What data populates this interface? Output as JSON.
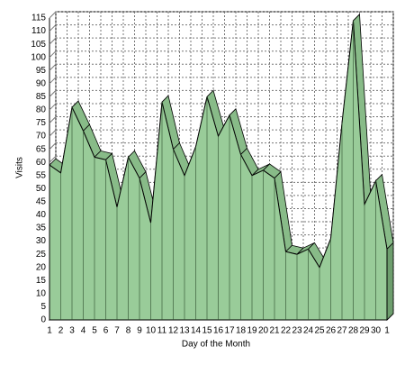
{
  "chart_data": {
    "type": "area3d",
    "x_label": "Day of the Month",
    "y_label": "Visits",
    "categories": [
      "1",
      "2",
      "3",
      "4",
      "5",
      "6",
      "7",
      "8",
      "9",
      "10",
      "11",
      "12",
      "13",
      "14",
      "15",
      "16",
      "17",
      "18",
      "19",
      "20",
      "21",
      "22",
      "23",
      "24",
      "25",
      "26",
      "27",
      "28",
      "29",
      "30",
      "1"
    ],
    "values": [
      59,
      56,
      81,
      72,
      62,
      61,
      43,
      62,
      54,
      37,
      83,
      65,
      55,
      66,
      85,
      70,
      78,
      63,
      55,
      57,
      54,
      26,
      25,
      27,
      20,
      31,
      75,
      114,
      44,
      53,
      27
    ],
    "color": "#99cc99",
    "ylim": [
      0,
      115
    ],
    "yticks": [
      0,
      5,
      10,
      15,
      20,
      25,
      30,
      35,
      40,
      45,
      50,
      55,
      60,
      65,
      70,
      75,
      80,
      85,
      90,
      95,
      100,
      105,
      110,
      115
    ],
    "grid": true
  }
}
